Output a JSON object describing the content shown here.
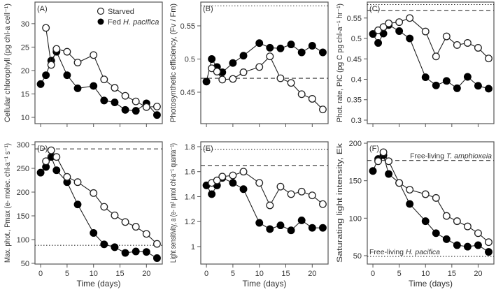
{
  "legend": {
    "starved": "Starved",
    "fed_prefix": "Fed ",
    "fed_species": "H. pacifica"
  },
  "colors": {
    "line": "#222222",
    "fed": "#000000",
    "starved_fill": "#ffffff",
    "axis": "#555555"
  },
  "chart_data": [
    {
      "type": "line",
      "panel": "(A)",
      "ylabel": "Cellular chlorophyll (pg chl-a cell⁻¹)",
      "xlabel": "",
      "ylim": [
        8.66,
        34.6
      ],
      "xlim": [
        -1.07,
        23
      ],
      "yticks": [
        10,
        15,
        20,
        25,
        30
      ],
      "xticks": [
        0,
        5,
        10,
        15,
        20
      ],
      "show_xtick_labels": false,
      "series": [
        {
          "name": "Fed H. pacifica",
          "x": [
            0,
            1,
            2,
            3,
            5,
            7,
            10,
            12,
            14,
            16,
            18,
            20,
            22
          ],
          "y": [
            17.1,
            19,
            22.1,
            24,
            19,
            16.2,
            16.7,
            13.6,
            13.2,
            11.6,
            11.4,
            13,
            10.5
          ]
        },
        {
          "name": "Starved",
          "x": [
            1,
            2,
            3,
            5,
            7,
            10,
            12,
            14,
            16,
            18,
            20,
            22
          ],
          "y": [
            29.1,
            21.2,
            24.6,
            24,
            21.7,
            23.3,
            18.1,
            16.3,
            14.6,
            13.4,
            12.2,
            12.3
          ]
        }
      ],
      "reference_lines": []
    },
    {
      "type": "line",
      "panel": "(B)",
      "ylabel": "Photosynthetic efficiency, (Fv / Fm)",
      "xlabel": "",
      "ylim": [
        0.4026,
        0.5858
      ],
      "xlim": [
        -1.07,
        23
      ],
      "yticks": [
        0.45,
        0.5,
        0.55
      ],
      "xticks": [
        0,
        5,
        10,
        15,
        20
      ],
      "show_xtick_labels": false,
      "series": [
        {
          "name": "Fed H. pacifica",
          "x": [
            0,
            1,
            2,
            3,
            5,
            7,
            10,
            12,
            14,
            16,
            18,
            20,
            22
          ],
          "y": [
            0.466,
            0.5,
            0.488,
            0.48,
            0.494,
            0.505,
            0.524,
            0.517,
            0.516,
            0.522,
            0.51,
            0.52,
            0.51
          ]
        },
        {
          "name": "Starved",
          "x": [
            1,
            2,
            3,
            5,
            7,
            10,
            12,
            14,
            16,
            18,
            20,
            22
          ],
          "y": [
            0.486,
            0.481,
            0.469,
            0.47,
            0.48,
            0.488,
            0.504,
            0.471,
            0.464,
            0.447,
            0.44,
            0.424
          ]
        }
      ],
      "reference_lines": [
        {
          "y": 0.471,
          "style": "dashed"
        },
        {
          "y": 0.58,
          "style": "dotted"
        }
      ]
    },
    {
      "type": "line",
      "panel": "(C)",
      "ylabel": "Phot. rate, PIC (pg C pg chl-a⁻¹ hr⁻¹)",
      "xlabel": "",
      "ylim": [
        0.2914,
        0.589
      ],
      "xlim": [
        -1.07,
        23
      ],
      "yticks": [
        0.3,
        0.35,
        0.4,
        0.45,
        0.5,
        0.55
      ],
      "xticks": [
        0,
        5,
        10,
        15,
        20
      ],
      "show_xtick_labels": false,
      "series": [
        {
          "name": "Fed H. pacifica",
          "x": [
            0,
            1,
            2,
            3,
            5,
            7,
            10,
            12,
            14,
            16,
            18,
            20,
            22
          ],
          "y": [
            0.511,
            0.489,
            0.512,
            0.533,
            0.518,
            0.5,
            0.405,
            0.385,
            0.396,
            0.378,
            0.406,
            0.384,
            0.377
          ]
        },
        {
          "name": "Starved",
          "x": [
            1,
            2,
            3,
            5,
            7,
            10,
            12,
            14,
            16,
            18,
            20,
            22
          ],
          "y": [
            0.52,
            0.528,
            0.537,
            0.54,
            0.55,
            0.517,
            0.456,
            0.505,
            0.484,
            0.489,
            0.477,
            0.451
          ]
        }
      ],
      "reference_lines": [
        {
          "y": 0.568,
          "style": "dashed"
        },
        {
          "y": 0.583,
          "style": "dotted"
        }
      ]
    },
    {
      "type": "line",
      "panel": "(D)",
      "ylabel": "Max. phot., Pmax (e- molec. chl-a⁻¹ s⁻¹)",
      "xlabel": "Time (days)",
      "ylim": [
        48.5,
        305.9
      ],
      "xlim": [
        -1.07,
        23
      ],
      "yticks": [
        50,
        100,
        150,
        200,
        250,
        300
      ],
      "xticks": [
        0,
        5,
        10,
        15,
        20
      ],
      "show_xtick_labels": true,
      "series": [
        {
          "name": "Fed H. pacifica",
          "x": [
            0,
            1,
            2,
            3,
            5,
            7,
            10,
            12,
            14,
            16,
            18,
            20,
            22
          ],
          "y": [
            241,
            253,
            274,
            246,
            221,
            174,
            114,
            90,
            84,
            72,
            75,
            74,
            61
          ]
        },
        {
          "name": "Starved",
          "x": [
            1,
            2,
            3,
            5,
            7,
            10,
            12,
            14,
            16,
            18,
            20,
            22
          ],
          "y": [
            265,
            288,
            274,
            232,
            221,
            198,
            169,
            151,
            137,
            127,
            112,
            91
          ]
        }
      ],
      "reference_lines": [
        {
          "y": 291,
          "style": "dashed"
        },
        {
          "y": 88,
          "style": "dotted"
        }
      ]
    },
    {
      "type": "line",
      "panel": "(E)",
      "ylabel": "Light sensitivity, a (e- m² µmol chl-a⁻¹ quanta⁻¹)",
      "xlabel": "Time (days)",
      "ylim": [
        0.86,
        1.839
      ],
      "xlim": [
        -1.07,
        23
      ],
      "yticks": [
        1.0,
        1.2,
        1.4,
        1.6,
        1.8
      ],
      "xticks": [
        0,
        5,
        10,
        15,
        20
      ],
      "show_xtick_labels": true,
      "series": [
        {
          "name": "Fed H. pacifica",
          "x": [
            0,
            1,
            2,
            3,
            5,
            7,
            10,
            12,
            14,
            16,
            18,
            20,
            22
          ],
          "y": [
            1.49,
            1.42,
            1.49,
            1.55,
            1.51,
            1.46,
            1.19,
            1.14,
            1.17,
            1.13,
            1.21,
            1.15,
            1.15
          ]
        },
        {
          "name": "Starved",
          "x": [
            1,
            2,
            3,
            5,
            7,
            10,
            12,
            14,
            16,
            18,
            20,
            22
          ],
          "y": [
            1.51,
            1.53,
            1.56,
            1.57,
            1.6,
            1.51,
            1.33,
            1.48,
            1.42,
            1.44,
            1.41,
            1.34
          ]
        }
      ],
      "reference_lines": [
        {
          "y": 1.65,
          "style": "dashed"
        },
        {
          "y": 1.78,
          "style": "dotted"
        }
      ]
    },
    {
      "type": "line",
      "panel": "(F)",
      "ylabel": "Saturating light intensity, Ek",
      "xlabel": "Time (days)",
      "ylim": [
        38.8,
        201.9
      ],
      "xlim": [
        -1.07,
        23
      ],
      "yticks": [
        50,
        100,
        150,
        200
      ],
      "xticks": [
        0,
        5,
        10,
        15,
        20
      ],
      "show_xtick_labels": true,
      "series": [
        {
          "name": "Fed H. pacifica",
          "x": [
            0,
            1,
            2,
            3,
            5,
            7,
            10,
            12,
            14,
            16,
            18,
            20,
            22
          ],
          "y": [
            163,
            179,
            184,
            159,
            147,
            119,
            96,
            80,
            72,
            64,
            62,
            64,
            55
          ]
        },
        {
          "name": "Starved",
          "x": [
            1,
            2,
            3,
            5,
            7,
            10,
            12,
            14,
            16,
            18,
            20,
            22
          ],
          "y": [
            176,
            188,
            176,
            147,
            138,
            132,
            127,
            103,
            96,
            89,
            80,
            68
          ]
        }
      ],
      "reference_lines": [
        {
          "y": 177,
          "style": "dashed",
          "label": "Free-living T. amphioxeia"
        },
        {
          "y": 49,
          "style": "dotted",
          "label": "Free-living H. pacifica"
        }
      ]
    }
  ]
}
